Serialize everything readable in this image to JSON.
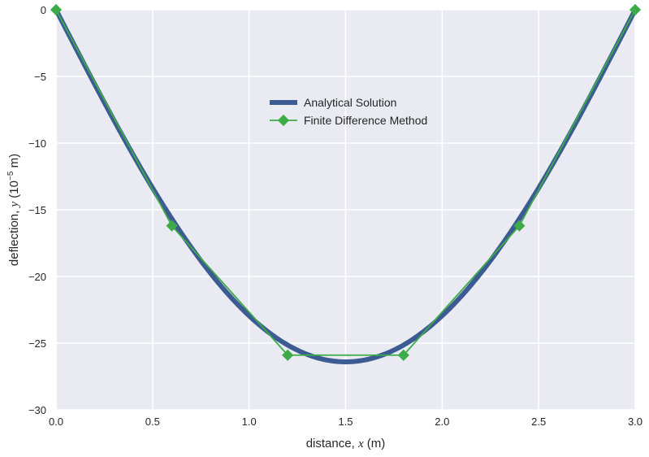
{
  "chart_data": {
    "type": "line",
    "title": "",
    "xlabel": "distance, x (m)",
    "xlabel_parts": {
      "pre": "distance, ",
      "var": "x",
      "post": " (m)"
    },
    "ylabel": "deflection, y (10^-5 m)",
    "ylabel_parts": {
      "pre": "deflection, ",
      "var": "y",
      "mid": " (10",
      "exp": "−5",
      "post": " m)"
    },
    "xlim": [
      0,
      3
    ],
    "ylim": [
      -30,
      0
    ],
    "xticks": [
      0,
      0.5,
      1,
      1.5,
      2,
      2.5,
      3
    ],
    "xtick_labels": [
      "0.0",
      "0.5",
      "1.0",
      "1.5",
      "2.0",
      "2.5",
      "3.0"
    ],
    "yticks": [
      0,
      -5,
      -10,
      -15,
      -20,
      -25,
      -30
    ],
    "ytick_labels": [
      "0",
      "−5",
      "−10",
      "−15",
      "−20",
      "−25",
      "−30"
    ],
    "grid": true,
    "legend_position": "upper-center",
    "colors": {
      "background": "#eaeaf2",
      "grid": "#ffffff",
      "analytical": "#3b5b92",
      "finite_difference": "#3cab48"
    },
    "series": [
      {
        "name": "Analytical Solution",
        "style": "thick-line",
        "curve": "beam_deflection",
        "peak_deflection": -26.4,
        "x_range": [
          0,
          3
        ]
      },
      {
        "name": "Finite Difference Method",
        "style": "line-diamond-markers",
        "x": [
          0,
          0.6,
          1.2,
          1.8,
          2.4,
          3.0
        ],
        "y": [
          0,
          -16.2,
          -25.9,
          -25.9,
          -16.2,
          0
        ]
      }
    ]
  }
}
